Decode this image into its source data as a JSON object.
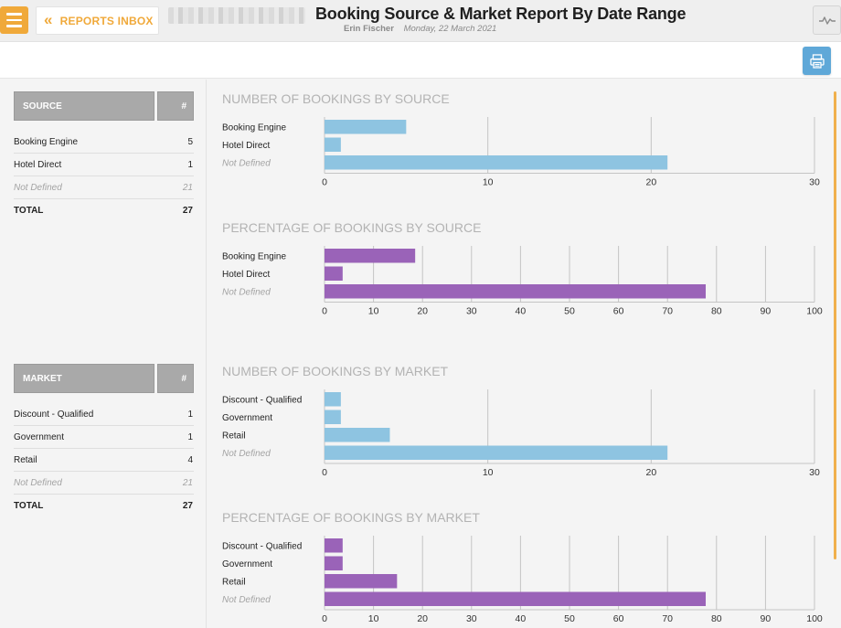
{
  "header": {
    "menu_label": "menu",
    "inbox_label": "REPORTS INBOX",
    "title": "Booking Source & Market Report By Date Range",
    "user": "Erin Fischer",
    "date": "Monday, 22 March 2021"
  },
  "source_table": {
    "header_name": "SOURCE",
    "header_num": "#",
    "rows": [
      {
        "label": "Booking Engine",
        "value": "5"
      },
      {
        "label": "Hotel Direct",
        "value": "1"
      },
      {
        "label": "Not Defined",
        "value": "21"
      }
    ],
    "total_label": "TOTAL",
    "total_value": "27"
  },
  "market_table": {
    "header_name": "MARKET",
    "header_num": "#",
    "rows": [
      {
        "label": "Discount - Qualified",
        "value": "1"
      },
      {
        "label": "Government",
        "value": "1"
      },
      {
        "label": "Retail",
        "value": "4"
      },
      {
        "label": "Not Defined",
        "value": "21"
      }
    ],
    "total_label": "TOTAL",
    "total_value": "27"
  },
  "colors": {
    "accent": "#f0a93a",
    "count_bar": "#8ec4e1",
    "percent_bar": "#9a63b8",
    "print_button": "#5fa8d8"
  },
  "chart_data": [
    {
      "type": "bar",
      "orientation": "horizontal",
      "title": "NUMBER OF BOOKINGS BY SOURCE",
      "categories": [
        "Booking Engine",
        "Hotel Direct",
        "Not Defined"
      ],
      "values": [
        5,
        1,
        21
      ],
      "xlim": [
        0,
        30
      ],
      "ticks": [
        0,
        10,
        20,
        30
      ],
      "color_key": "count_bar"
    },
    {
      "type": "bar",
      "orientation": "horizontal",
      "title": "PERCENTAGE OF BOOKINGS BY SOURCE",
      "categories": [
        "Booking Engine",
        "Hotel Direct",
        "Not Defined"
      ],
      "values": [
        18.5,
        3.7,
        77.8
      ],
      "xlim": [
        0,
        100
      ],
      "ticks": [
        0,
        10,
        20,
        30,
        40,
        50,
        60,
        70,
        80,
        90,
        100
      ],
      "color_key": "percent_bar"
    },
    {
      "type": "bar",
      "orientation": "horizontal",
      "title": "NUMBER OF BOOKINGS BY MARKET",
      "categories": [
        "Discount - Qualified",
        "Government",
        "Retail",
        "Not Defined"
      ],
      "values": [
        1,
        1,
        4,
        21
      ],
      "xlim": [
        0,
        30
      ],
      "ticks": [
        0,
        10,
        20,
        30
      ],
      "color_key": "count_bar"
    },
    {
      "type": "bar",
      "orientation": "horizontal",
      "title": "PERCENTAGE OF BOOKINGS BY MARKET",
      "categories": [
        "Discount - Qualified",
        "Government",
        "Retail",
        "Not Defined"
      ],
      "values": [
        3.7,
        3.7,
        14.8,
        77.8
      ],
      "xlim": [
        0,
        100
      ],
      "ticks": [
        0,
        10,
        20,
        30,
        40,
        50,
        60,
        70,
        80,
        90,
        100
      ],
      "color_key": "percent_bar"
    }
  ]
}
